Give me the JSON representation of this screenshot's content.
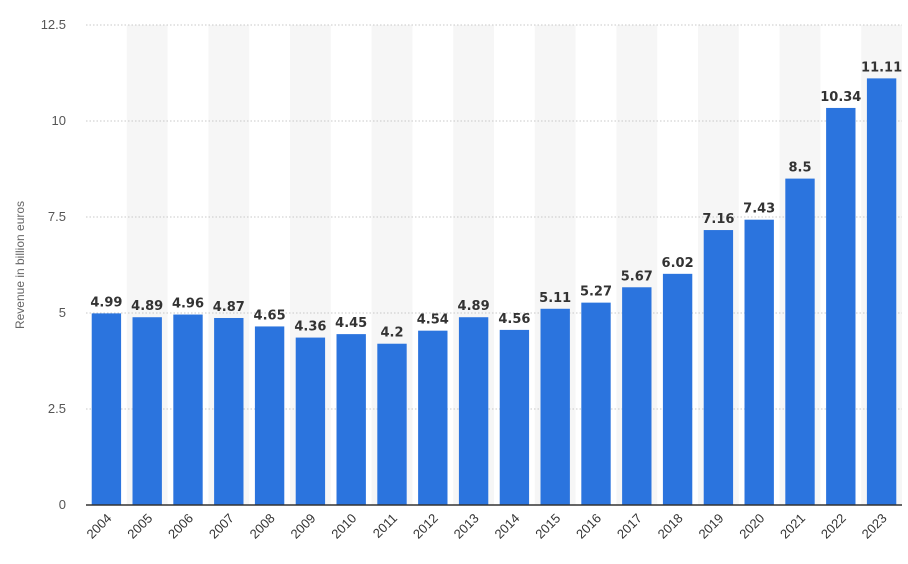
{
  "chart_data": {
    "type": "bar",
    "title": "",
    "xlabel": "",
    "ylabel": "Revenue in billion euros",
    "categories": [
      "2004",
      "2005",
      "2006",
      "2007",
      "2008",
      "2009",
      "2010",
      "2011",
      "2012",
      "2013",
      "2014",
      "2015",
      "2016",
      "2017",
      "2018",
      "2019",
      "2020",
      "2021",
      "2022",
      "2023"
    ],
    "values": [
      4.99,
      4.89,
      4.96,
      4.87,
      4.65,
      4.36,
      4.45,
      4.2,
      4.54,
      4.89,
      4.56,
      5.11,
      5.27,
      5.67,
      6.02,
      7.16,
      7.43,
      8.5,
      10.34,
      11.11
    ],
    "value_labels": [
      "4.99",
      "4.89",
      "4.96",
      "4.87",
      "4.65",
      "4.36",
      "4.45",
      "4.2",
      "4.54",
      "4.89",
      "4.56",
      "5.11",
      "5.27",
      "5.67",
      "6.02",
      "7.16",
      "7.43",
      "8.5",
      "10.34",
      "11.11"
    ],
    "ylim": [
      0,
      12.5
    ],
    "yticks": [
      0,
      2.5,
      5,
      7.5,
      10,
      12.5
    ],
    "ytick_labels": [
      "0",
      "2.5",
      "5",
      "7.5",
      "10",
      "12.5"
    ],
    "grid": true,
    "legend": "none",
    "colors": {
      "bar": "#2b74de",
      "band": "#f6f6f6",
      "grid": "#c8c8c8",
      "baseline": "#333333"
    }
  }
}
